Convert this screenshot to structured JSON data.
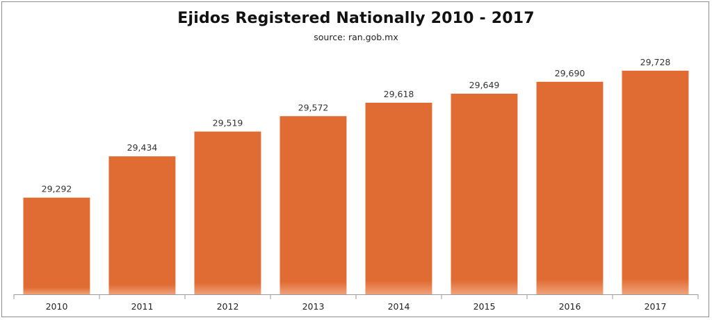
{
  "chart_data": {
    "type": "bar",
    "title": "Ejidos Registered Nationally 2010 - 2017",
    "subtitle": "source: ran.gob.mx",
    "xlabel": "",
    "ylabel": "",
    "categories": [
      "2010",
      "2011",
      "2012",
      "2013",
      "2014",
      "2015",
      "2016",
      "2017"
    ],
    "values": [
      29292,
      29434,
      29519,
      29572,
      29618,
      29649,
      29690,
      29728
    ],
    "value_labels": [
      "29,292",
      "29,434",
      "29,519",
      "29,572",
      "29,618",
      "29,649",
      "29,690",
      "29,728"
    ],
    "ylim": [
      28960,
      29780
    ],
    "grid": false,
    "legend": "none",
    "bar_color": "#E06C33",
    "bar_gradient_bottom": "#F0A17A"
  }
}
